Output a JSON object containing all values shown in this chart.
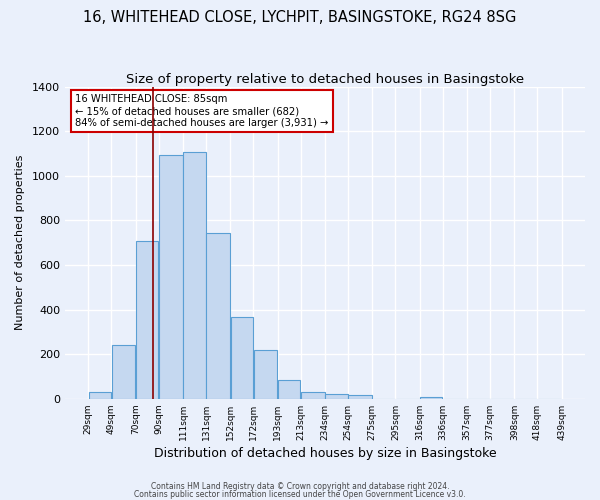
{
  "title": "16, WHITEHEAD CLOSE, LYCHPIT, BASINGSTOKE, RG24 8SG",
  "subtitle": "Size of property relative to detached houses in Basingstoke",
  "xlabel": "Distribution of detached houses by size in Basingstoke",
  "ylabel": "Number of detached properties",
  "bar_edges": [
    29,
    49,
    70,
    90,
    111,
    131,
    152,
    172,
    193,
    213,
    234,
    254,
    275,
    295,
    316,
    336,
    357,
    377,
    398,
    418,
    439
  ],
  "bar_heights": [
    30,
    240,
    710,
    1095,
    1105,
    745,
    365,
    220,
    85,
    30,
    20,
    15,
    0,
    0,
    10,
    0,
    0,
    0,
    0,
    0
  ],
  "bar_color": "#c5d8f0",
  "bar_edge_color": "#5a9fd4",
  "vline_x": 85,
  "vline_color": "#8b0000",
  "ylim": [
    0,
    1400
  ],
  "yticks": [
    0,
    200,
    400,
    600,
    800,
    1000,
    1200,
    1400
  ],
  "annotation_line1": "16 WHITEHEAD CLOSE: 85sqm",
  "annotation_line2": "← 15% of detached houses are smaller (682)",
  "annotation_line3": "84% of semi-detached houses are larger (3,931) →",
  "footer_line1": "Contains HM Land Registry data © Crown copyright and database right 2024.",
  "footer_line2": "Contains public sector information licensed under the Open Government Licence v3.0.",
  "background_color": "#eaf0fb",
  "grid_color": "#ffffff",
  "title_fontsize": 10.5,
  "subtitle_fontsize": 9.5,
  "tick_labels": [
    "29sqm",
    "49sqm",
    "70sqm",
    "90sqm",
    "111sqm",
    "131sqm",
    "152sqm",
    "172sqm",
    "193sqm",
    "213sqm",
    "234sqm",
    "254sqm",
    "275sqm",
    "295sqm",
    "316sqm",
    "336sqm",
    "357sqm",
    "377sqm",
    "398sqm",
    "418sqm",
    "439sqm"
  ]
}
